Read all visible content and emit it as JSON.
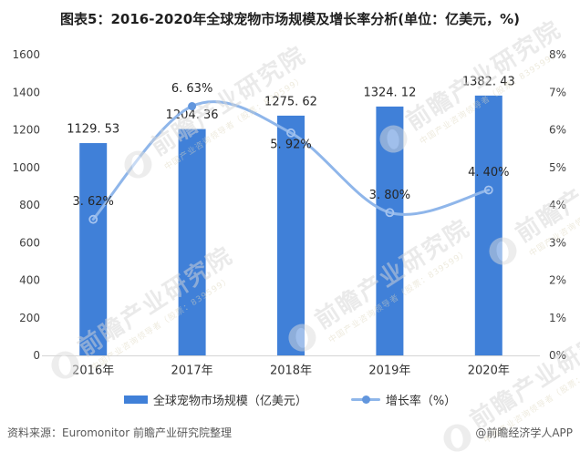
{
  "title": "图表5：2016-2020年全球宠物市场规模及增长率分析(单位：亿美元，%)",
  "chart_data": {
    "type": "bar",
    "title": "图表5：2016-2020年全球宠物市场规模及增长率分析(单位：亿美元，%)",
    "categories": [
      "2016年",
      "2017年",
      "2018年",
      "2019年",
      "2020年"
    ],
    "series": [
      {
        "name": "全球宠物市场规模（亿美元）",
        "type": "bar",
        "axis": "left",
        "values": [
          1129.53,
          1204.36,
          1275.62,
          1324.12,
          1382.43
        ],
        "labels": [
          "1129. 53",
          "1204. 36",
          "1275. 62",
          "1324. 12",
          "1382. 43"
        ]
      },
      {
        "name": "增长率（%）",
        "type": "line",
        "axis": "right",
        "values": [
          3.62,
          6.63,
          5.92,
          3.8,
          4.4
        ],
        "labels": [
          "3. 62%",
          "6. 63%",
          "5. 92%",
          "3. 80%",
          "4. 40%"
        ],
        "label_positions": [
          "above",
          "above",
          "below",
          "above",
          "above"
        ],
        "marker_styles": [
          "hollow",
          "solid",
          "hollow",
          "hollow",
          "hollow"
        ],
        "smooth": true
      }
    ],
    "left_axis": {
      "min": 0,
      "max": 1600,
      "step": 200,
      "ticks": [
        "0",
        "200",
        "400",
        "600",
        "800",
        "1000",
        "1200",
        "1400",
        "1600"
      ]
    },
    "right_axis": {
      "min": 0,
      "max": 8,
      "step": 1,
      "ticks": [
        "0%",
        "1%",
        "2%",
        "3%",
        "4%",
        "5%",
        "6%",
        "7%",
        "8%"
      ]
    },
    "grid": false,
    "legend_position": "bottom"
  },
  "footer": {
    "source": "资料来源：Euromonitor 前瞻产业研究院整理",
    "credit": "@前瞻经济学人APP"
  },
  "watermark": {
    "text": "前瞻产业研究院",
    "subtext": "中国产业咨询领导者（股票：839599）"
  },
  "colors": {
    "bar": "#4080D8",
    "line": "#8FB6EA",
    "marker_solid": "#6296DD",
    "marker_ring": "#A5C3EE",
    "axis_line": "#D4D4D4",
    "tick_text": "#404040",
    "title_text": "#1F1F1F",
    "footer_text": "#595959"
  }
}
